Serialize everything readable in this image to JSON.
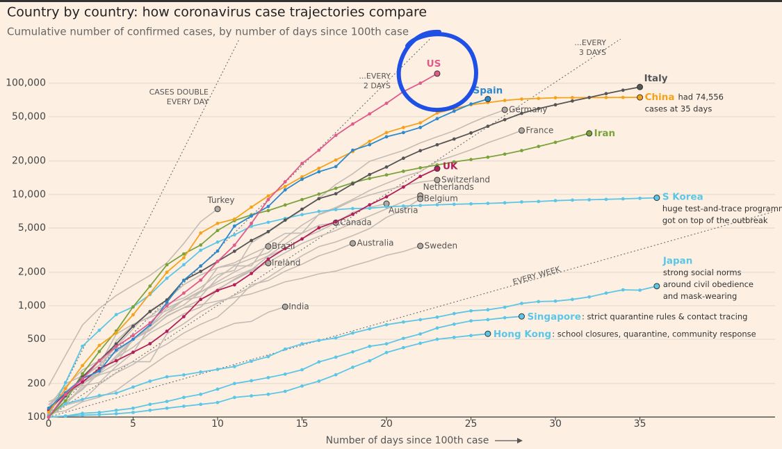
{
  "chart_data": {
    "type": "line",
    "title": "Country by country: how coronavirus case trajectories compare",
    "subtitle": "Cumulative number of confirmed cases, by number of days since 100th case",
    "x_label": "Number of days since 100th case",
    "log_y": true,
    "grid": true,
    "xlim": [
      0,
      43
    ],
    "ylim": [
      100,
      250000
    ],
    "xticks": [
      0,
      5,
      10,
      15,
      20,
      25,
      30,
      35
    ],
    "yticks": [
      100,
      200,
      500,
      {
        "value": 1000,
        "label": "1,000"
      },
      {
        "value": 2000,
        "label": "2,000"
      },
      {
        "value": 5000,
        "label": "5,000"
      },
      {
        "value": 10000,
        "label": "10,000"
      },
      {
        "value": 20000,
        "label": "20,000"
      },
      {
        "value": 50000,
        "label": "50,000"
      },
      {
        "value": 100000,
        "label": "100,000"
      }
    ],
    "x": [
      0,
      1,
      2,
      3,
      4,
      5,
      6,
      7,
      8,
      9,
      10,
      11,
      12,
      13,
      14,
      15,
      16,
      17,
      18,
      19,
      20,
      21,
      22,
      23,
      24,
      25,
      26,
      27,
      28,
      29,
      30,
      31,
      32,
      33,
      34,
      35,
      36
    ],
    "reference_lines": [
      {
        "label": [
          "CASES DOUBLE",
          "EVERY DAY"
        ],
        "doubling_days": 1
      },
      {
        "label": [
          "...EVERY",
          "2 DAYS"
        ],
        "doubling_days": 2
      },
      {
        "label": [
          "...EVERY",
          "3 DAYS"
        ],
        "doubling_days": 3
      },
      {
        "label": [
          "EVERY WEEK"
        ],
        "doubling_days": 7
      }
    ],
    "series": [
      {
        "name": "Germany",
        "color": "#c4bcb4",
        "highlight": false,
        "values": [
          130,
          159,
          196,
          262,
          482,
          670,
          799,
          1040,
          1176,
          1457,
          1908,
          2078,
          3675,
          4585,
          5795,
          7272,
          9257,
          12327,
          15320,
          19848,
          22213,
          24873,
          29056,
          32986,
          37323,
          43938,
          50871,
          57695,
          null,
          null,
          null,
          null,
          null,
          null,
          null,
          null,
          null
        ]
      },
      {
        "name": "France",
        "color": "#c4bcb4",
        "highlight": false,
        "values": [
          100,
          130,
          191,
          204,
          285,
          377,
          653,
          949,
          1126,
          1209,
          1784,
          2281,
          2281,
          3661,
          4469,
          4499,
          6633,
          7652,
          9043,
          10871,
          12612,
          14459,
          16018,
          19856,
          22304,
          25233,
          29155,
          32964,
          37575,
          null,
          null,
          null,
          null,
          null,
          null,
          null,
          null
        ]
      },
      {
        "name": "Switzerland",
        "color": "#c4bcb4",
        "highlight": false,
        "values": [
          100,
          150,
          210,
          260,
          340,
          490,
          650,
          860,
          1130,
          1360,
          2200,
          2330,
          2650,
          3000,
          4070,
          5300,
          6570,
          7470,
          8800,
          9880,
          10900,
          12000,
          12900,
          13500,
          null,
          null,
          null,
          null,
          null,
          null,
          null,
          null,
          null,
          null,
          null,
          null,
          null
        ]
      },
      {
        "name": "Netherlands",
        "color": "#c4bcb4",
        "highlight": false,
        "values": [
          128,
          188,
          265,
          321,
          382,
          503,
          614,
          804,
          959,
          1135,
          1413,
          1705,
          2051,
          2460,
          2994,
          3631,
          4204,
          4749,
          5560,
          6412,
          7431,
          8603,
          9762,
          null,
          null,
          null,
          null,
          null,
          null,
          null,
          null,
          null,
          null,
          null,
          null,
          null,
          null
        ]
      },
      {
        "name": "Belgium",
        "color": "#c4bcb4",
        "highlight": false,
        "values": [
          109,
          169,
          200,
          239,
          267,
          314,
          314,
          559,
          689,
          886,
          1058,
          1243,
          1486,
          1795,
          2257,
          2815,
          3401,
          3743,
          4269,
          4937,
          6235,
          7284,
          9134,
          null,
          null,
          null,
          null,
          null,
          null,
          null,
          null,
          null,
          null,
          null,
          null,
          null,
          null
        ]
      },
      {
        "name": "Austria",
        "color": "#c4bcb4",
        "highlight": false,
        "values": [
          104,
          131,
          182,
          246,
          302,
          504,
          655,
          860,
          1018,
          1332,
          1646,
          2013,
          2388,
          2814,
          3582,
          4474,
          5283,
          5588,
          6909,
          7657,
          8271,
          null,
          null,
          null,
          null,
          null,
          null,
          null,
          null,
          null,
          null,
          null,
          null,
          null,
          null,
          null,
          null
        ]
      },
      {
        "name": "Canada",
        "color": "#c4bcb4",
        "highlight": false,
        "values": [
          103,
          138,
          176,
          252,
          341,
          424,
          569,
          690,
          846,
          971,
          1384,
          1739,
          2104,
          2790,
          3251,
          4042,
          4682,
          5576,
          null,
          null,
          null,
          null,
          null,
          null,
          null,
          null,
          null,
          null,
          null,
          null,
          null,
          null,
          null,
          null,
          null,
          null,
          null
        ]
      },
      {
        "name": "Australia",
        "color": "#c4bcb4",
        "highlight": false,
        "values": [
          112,
          128,
          140,
          197,
          249,
          297,
          377,
          452,
          568,
          681,
          791,
          1071,
          1549,
          1682,
          2044,
          2364,
          2810,
          3143,
          3640,
          null,
          null,
          null,
          null,
          null,
          null,
          null,
          null,
          null,
          null,
          null,
          null,
          null,
          null,
          null,
          null,
          null,
          null
        ]
      },
      {
        "name": "Sweden",
        "color": "#c4bcb4",
        "highlight": false,
        "values": [
          137,
          161,
          203,
          248,
          355,
          500,
          599,
          814,
          961,
          1022,
          1103,
          1190,
          1279,
          1439,
          1639,
          1763,
          1934,
          2046,
          2286,
          2526,
          2840,
          3069,
          3447,
          null,
          null,
          null,
          null,
          null,
          null,
          null,
          null,
          null,
          null,
          null,
          null,
          null,
          null
        ]
      },
      {
        "name": "Brazil",
        "color": "#c4bcb4",
        "highlight": false,
        "values": [
          121,
          200,
          234,
          291,
          428,
          621,
          904,
          1128,
          1546,
          1891,
          2201,
          2433,
          2915,
          3417,
          null,
          null,
          null,
          null,
          null,
          null,
          null,
          null,
          null,
          null,
          null,
          null,
          null,
          null,
          null,
          null,
          null,
          null,
          null,
          null,
          null,
          null,
          null
        ]
      },
      {
        "name": "Ireland",
        "color": "#c4bcb4",
        "highlight": false,
        "values": [
          129,
          169,
          223,
          292,
          557,
          683,
          785,
          906,
          1125,
          1329,
          1564,
          1819,
          2121,
          2415,
          null,
          null,
          null,
          null,
          null,
          null,
          null,
          null,
          null,
          null,
          null,
          null,
          null,
          null,
          null,
          null,
          null,
          null,
          null,
          null,
          null,
          null,
          null
        ]
      },
      {
        "name": "Turkey",
        "color": "#c4bcb4",
        "highlight": false,
        "values": [
          191,
          359,
          670,
          947,
          1236,
          1529,
          1872,
          2433,
          3629,
          5698,
          7402,
          null,
          null,
          null,
          null,
          null,
          null,
          null,
          null,
          null,
          null,
          null,
          null,
          null,
          null,
          null,
          null,
          null,
          null,
          null,
          null,
          null,
          null,
          null,
          null,
          null,
          null
        ]
      },
      {
        "name": "India",
        "color": "#c4bcb4",
        "highlight": false,
        "values": [
          107,
          114,
          137,
          151,
          173,
          223,
          283,
          360,
          434,
          519,
          606,
          694,
          724,
          873,
          979,
          null,
          null,
          null,
          null,
          null,
          null,
          null,
          null,
          null,
          null,
          null,
          null,
          null,
          null,
          null,
          null,
          null,
          null,
          null,
          null,
          null,
          null
        ]
      },
      {
        "name": "Japan",
        "color": "#5bc6e6",
        "highlight": true,
        "note": [
          "strong social norms",
          "around civil obedience",
          "and mask-wearing"
        ],
        "values": [
          105,
          132,
          144,
          156,
          164,
          186,
          210,
          230,
          239,
          254,
          268,
          284,
          317,
          349,
          408,
          455,
          488,
          514,
          568,
          619,
          675,
          714,
          750,
          790,
          850,
          900,
          920,
          970,
          1050,
          1090,
          1100,
          1140,
          1200,
          1300,
          1390,
          1380,
          1500
        ]
      },
      {
        "name": "Singapore",
        "color": "#5bc6e6",
        "highlight": true,
        "note": [
          ": strict quarantine rules & contact tracing"
        ],
        "values": [
          100,
          102,
          108,
          110,
          115,
          120,
          130,
          138,
          150,
          160,
          178,
          200,
          212,
          226,
          243,
          266,
          313,
          345,
          385,
          432,
          455,
          509,
          558,
          631,
          683,
          732,
          750,
          780,
          802,
          null,
          null,
          null,
          null,
          null,
          null,
          null,
          null
        ]
      },
      {
        "name": "Hong Kong",
        "color": "#5bc6e6",
        "highlight": true,
        "note": [
          ": school closures, quarantine, community response"
        ],
        "values": [
          100,
          102,
          104,
          105,
          107,
          110,
          115,
          120,
          125,
          130,
          135,
          150,
          155,
          160,
          170,
          190,
          210,
          240,
          280,
          320,
          380,
          420,
          460,
          500,
          520,
          540,
          560,
          null,
          null,
          null,
          null,
          null,
          null,
          null,
          null,
          null,
          null
        ]
      },
      {
        "name": "S Korea",
        "color": "#5bc6e6",
        "highlight": true,
        "note": [
          "huge test-and-trace programme",
          "got on top of the outbreak"
        ],
        "values": [
          104,
          204,
          433,
          602,
          833,
          977,
          1261,
          1766,
          2337,
          3150,
          3736,
          4335,
          5186,
          5621,
          6088,
          6593,
          7041,
          7313,
          7478,
          7513,
          7755,
          7869,
          7979,
          8086,
          8162,
          8236,
          8320,
          8413,
          8565,
          8652,
          8799,
          8897,
          8961,
          9037,
          9137,
          9241,
          9332
        ]
      },
      {
        "name": "Iran",
        "color": "#7ba33c",
        "highlight": true,
        "values": [
          100,
          140,
          245,
          388,
          593,
          978,
          1501,
          2336,
          2922,
          3513,
          4747,
          5823,
          6566,
          7161,
          8042,
          9000,
          10075,
          11364,
          12729,
          13938,
          14991,
          16169,
          17361,
          18407,
          19644,
          20610,
          21638,
          23049,
          24811,
          27017,
          29406,
          32332,
          35408,
          null,
          null,
          null,
          null
        ]
      },
      {
        "name": "UK",
        "color": "#b21f5a",
        "highlight": true,
        "values": [
          115,
          163,
          206,
          273,
          321,
          382,
          456,
          590,
          798,
          1140,
          1372,
          1543,
          1950,
          2626,
          3269,
          3983,
          5018,
          5683,
          6650,
          8077,
          9529,
          11658,
          14543,
          17089,
          null,
          null,
          null,
          null,
          null,
          null,
          null,
          null,
          null,
          null,
          null,
          null,
          null
        ]
      },
      {
        "name": "China",
        "color": "#f5a21a",
        "highlight": true,
        "note": [
          "had 74,556",
          "cases at 35 days"
        ],
        "values": [
          110,
          180,
          290,
          440,
          570,
          830,
          1290,
          2000,
          2700,
          4500,
          5500,
          6000,
          7700,
          9700,
          11800,
          14400,
          17200,
          20400,
          24300,
          30000,
          36000,
          40000,
          44000,
          54000,
          59000,
          64000,
          67000,
          70000,
          72000,
          73000,
          74000,
          74200,
          74300,
          74400,
          74500,
          74556,
          null
        ]
      },
      {
        "name": "Italy",
        "color": "#555555",
        "highlight": true,
        "values": [
          100,
          155,
          229,
          322,
          453,
          655,
          888,
          1128,
          1694,
          2036,
          2502,
          3089,
          3858,
          4636,
          5883,
          7375,
          9172,
          10149,
          12462,
          15113,
          17660,
          21157,
          24747,
          27980,
          31506,
          35713,
          41035,
          47021,
          53578,
          59138,
          63927,
          69176,
          74386,
          80589,
          86498,
          92472,
          null
        ]
      },
      {
        "name": "Spain",
        "color": "#2d89cc",
        "highlight": true,
        "values": [
          120,
          165,
          222,
          259,
          400,
          500,
          673,
          1073,
          1695,
          2277,
          3100,
          5200,
          6400,
          7800,
          11000,
          13700,
          16000,
          17800,
          25000,
          28000,
          33000,
          36000,
          40000,
          48000,
          56000,
          65000,
          72000,
          null,
          null,
          null,
          null,
          null,
          null,
          null,
          null,
          null,
          null
        ]
      },
      {
        "name": "US",
        "color": "#e05a8a",
        "highlight": true,
        "values": [
          100,
          160,
          220,
          320,
          430,
          540,
          700,
          1000,
          1300,
          1700,
          2500,
          3500,
          5500,
          9000,
          13000,
          19000,
          25000,
          34000,
          43000,
          53000,
          66000,
          84000,
          100000,
          122000,
          null,
          null,
          null,
          null,
          null,
          null,
          null,
          null,
          null,
          null,
          null,
          null,
          null
        ]
      }
    ]
  }
}
